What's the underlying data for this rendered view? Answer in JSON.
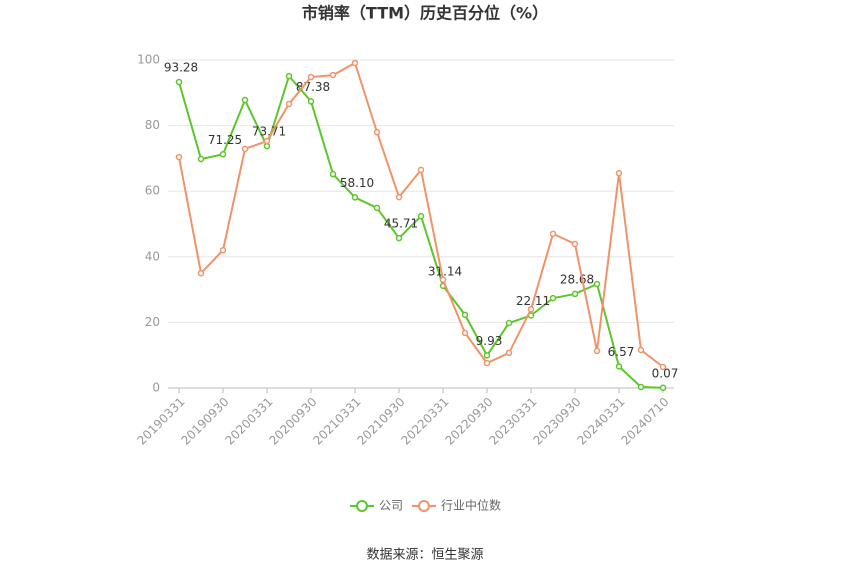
{
  "chart_data": {
    "type": "line",
    "title": "市销率（TTM）历史百分位（%）",
    "source": "数据来源：恒生聚源",
    "categories": [
      "20190331",
      null,
      "20190930",
      null,
      "20200331",
      null,
      "20200930",
      null,
      "20210331",
      null,
      "20210930",
      null,
      "20220331",
      null,
      "20220930",
      null,
      "20230331",
      null,
      "20230930",
      null,
      "20240331",
      null,
      "20240710"
    ],
    "series": [
      {
        "name": "公司",
        "color": "#5cc62a",
        "values": [
          93.28,
          69.8,
          71.25,
          87.8,
          73.71,
          95.1,
          87.38,
          65.2,
          58.1,
          54.9,
          45.71,
          52.4,
          31.14,
          22.3,
          9.93,
          19.8,
          22.11,
          27.4,
          28.68,
          31.7,
          6.57,
          0.3,
          0.07
        ],
        "value_labels": [
          "93.28",
          null,
          "71.25",
          null,
          "73.71",
          null,
          "87.38",
          null,
          "58.10",
          null,
          "45.71",
          null,
          "31.14",
          null,
          "9.93",
          null,
          "22.11",
          null,
          "28.68",
          null,
          "6.57",
          null,
          "0.07"
        ]
      },
      {
        "name": "行业中位数",
        "color": "#f0936a",
        "values": [
          70.4,
          35,
          42,
          72.9,
          75.3,
          86.6,
          94.8,
          95.4,
          99.1,
          78,
          58.2,
          66.5,
          33,
          16.8,
          7.6,
          10.7,
          24,
          47,
          43.9,
          11.3,
          65.5,
          11.6,
          6.4
        ]
      }
    ],
    "ylim": [
      0,
      100
    ],
    "yticks": [
      0,
      20,
      40,
      60,
      80,
      100
    ],
    "grid": true,
    "legend": "bottom"
  }
}
